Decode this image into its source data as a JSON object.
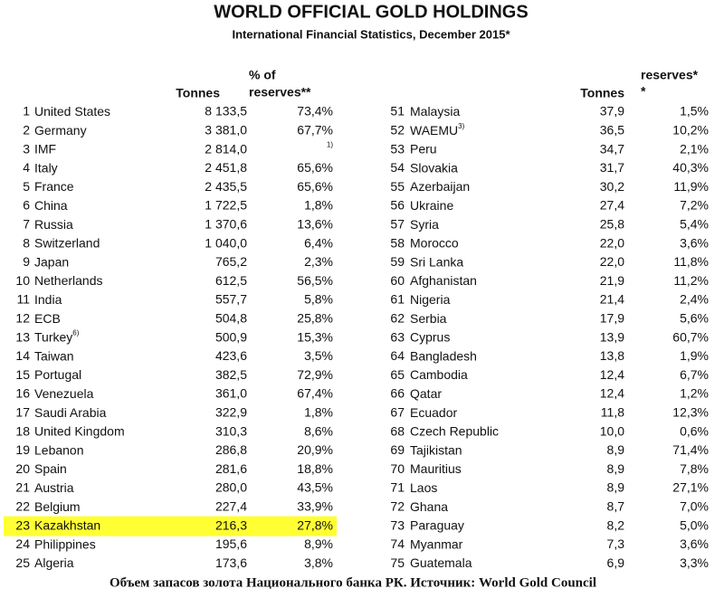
{
  "header": {
    "title": "WORLD OFFICIAL GOLD HOLDINGS",
    "subtitle": "International Financial Statistics, December 2015*"
  },
  "left_table": {
    "columns": {
      "tonnes": "Tonnes",
      "share_line1": "% of",
      "share_line2": "reserves**"
    },
    "rows": [
      {
        "rank": 1,
        "name": "United States",
        "tonnes": "8 133,5",
        "share": "73,4%"
      },
      {
        "rank": 2,
        "name": "Germany",
        "tonnes": "3 381,0",
        "share": "67,7%"
      },
      {
        "rank": 3,
        "name": "IMF",
        "tonnes": "2 814,0",
        "share_note": "1)"
      },
      {
        "rank": 4,
        "name": "Italy",
        "tonnes": "2 451,8",
        "share": "65,6%"
      },
      {
        "rank": 5,
        "name": "France",
        "tonnes": "2 435,5",
        "share": "65,6%"
      },
      {
        "rank": 6,
        "name": "China",
        "tonnes": "1 722,5",
        "share": "1,8%"
      },
      {
        "rank": 7,
        "name": "Russia",
        "tonnes": "1 370,6",
        "share": "13,6%"
      },
      {
        "rank": 8,
        "name": "Switzerland",
        "tonnes": "1 040,0",
        "share": "6,4%"
      },
      {
        "rank": 9,
        "name": "Japan",
        "tonnes": "765,2",
        "share": "2,3%"
      },
      {
        "rank": 10,
        "name": "Netherlands",
        "tonnes": "612,5",
        "share": "56,5%"
      },
      {
        "rank": 11,
        "name": "India",
        "tonnes": "557,7",
        "share": "5,8%"
      },
      {
        "rank": 12,
        "name": "ECB",
        "tonnes": "504,8",
        "share": "25,8%"
      },
      {
        "rank": 13,
        "name": "Turkey",
        "note": "6)",
        "tonnes": "500,9",
        "share": "15,3%"
      },
      {
        "rank": 14,
        "name": "Taiwan",
        "tonnes": "423,6",
        "share": "3,5%"
      },
      {
        "rank": 15,
        "name": "Portugal",
        "tonnes": "382,5",
        "share": "72,9%"
      },
      {
        "rank": 16,
        "name": "Venezuela",
        "tonnes": "361,0",
        "share": "67,4%"
      },
      {
        "rank": 17,
        "name": "Saudi Arabia",
        "tonnes": "322,9",
        "share": "1,8%"
      },
      {
        "rank": 18,
        "name": "United Kingdom",
        "tonnes": "310,3",
        "share": "8,6%"
      },
      {
        "rank": 19,
        "name": "Lebanon",
        "tonnes": "286,8",
        "share": "20,9%"
      },
      {
        "rank": 20,
        "name": "Spain",
        "tonnes": "281,6",
        "share": "18,8%"
      },
      {
        "rank": 21,
        "name": "Austria",
        "tonnes": "280,0",
        "share": "43,5%"
      },
      {
        "rank": 22,
        "name": "Belgium",
        "tonnes": "227,4",
        "share": "33,9%"
      },
      {
        "rank": 23,
        "name": "Kazakhstan",
        "tonnes": "216,3",
        "share": "27,8%",
        "highlight": "#ffff33"
      },
      {
        "rank": 24,
        "name": "Philippines",
        "tonnes": "195,6",
        "share": "8,9%"
      },
      {
        "rank": 25,
        "name": "Algeria",
        "tonnes": "173,6",
        "share": "3,8%"
      }
    ]
  },
  "right_table": {
    "columns": {
      "tonnes": "Tonnes",
      "share_line1": "reserves*",
      "share_line2": "*"
    },
    "rows": [
      {
        "rank": 51,
        "name": "Malaysia",
        "tonnes": "37,9",
        "share": "1,5%"
      },
      {
        "rank": 52,
        "name": "WAEMU",
        "note": "3)",
        "tonnes": "36,5",
        "share": "10,2%"
      },
      {
        "rank": 53,
        "name": "Peru",
        "tonnes": "34,7",
        "share": "2,1%"
      },
      {
        "rank": 54,
        "name": "Slovakia",
        "tonnes": "31,7",
        "share": "40,3%"
      },
      {
        "rank": 55,
        "name": "Azerbaijan",
        "tonnes": "30,2",
        "share": "11,9%"
      },
      {
        "rank": 56,
        "name": "Ukraine",
        "tonnes": "27,4",
        "share": "7,2%"
      },
      {
        "rank": 57,
        "name": "Syria",
        "tonnes": "25,8",
        "share": "5,4%"
      },
      {
        "rank": 58,
        "name": "Morocco",
        "tonnes": "22,0",
        "share": "3,6%"
      },
      {
        "rank": 59,
        "name": "Sri Lanka",
        "tonnes": "22,0",
        "share": "11,8%"
      },
      {
        "rank": 60,
        "name": "Afghanistan",
        "tonnes": "21,9",
        "share": "11,2%"
      },
      {
        "rank": 61,
        "name": "Nigeria",
        "tonnes": "21,4",
        "share": "2,4%"
      },
      {
        "rank": 62,
        "name": "Serbia",
        "tonnes": "17,9",
        "share": "5,6%"
      },
      {
        "rank": 63,
        "name": "Cyprus",
        "tonnes": "13,9",
        "share": "60,7%"
      },
      {
        "rank": 64,
        "name": "Bangladesh",
        "tonnes": "13,8",
        "share": "1,9%"
      },
      {
        "rank": 65,
        "name": "Cambodia",
        "tonnes": "12,4",
        "share": "6,7%"
      },
      {
        "rank": 66,
        "name": "Qatar",
        "tonnes": "12,4",
        "share": "1,2%"
      },
      {
        "rank": 67,
        "name": "Ecuador",
        "tonnes": "11,8",
        "share": "12,3%"
      },
      {
        "rank": 68,
        "name": "Czech Republic",
        "tonnes": "10,0",
        "share": "0,6%"
      },
      {
        "rank": 69,
        "name": "Tajikistan",
        "tonnes": "8,9",
        "share": "71,4%"
      },
      {
        "rank": 70,
        "name": "Mauritius",
        "tonnes": "8,9",
        "share": "7,8%"
      },
      {
        "rank": 71,
        "name": "Laos",
        "tonnes": "8,9",
        "share": "27,1%"
      },
      {
        "rank": 72,
        "name": "Ghana",
        "tonnes": "8,7",
        "share": "7,0%"
      },
      {
        "rank": 73,
        "name": "Paraguay",
        "tonnes": "8,2",
        "share": "5,0%"
      },
      {
        "rank": 74,
        "name": "Myanmar",
        "tonnes": "7,3",
        "share": "3,6%"
      },
      {
        "rank": 75,
        "name": "Guatemala",
        "tonnes": "6,9",
        "share": "3,3%"
      }
    ]
  },
  "footer": {
    "caption": "Объем запасов золота Национального банка РК. Источник: World Gold Council"
  }
}
